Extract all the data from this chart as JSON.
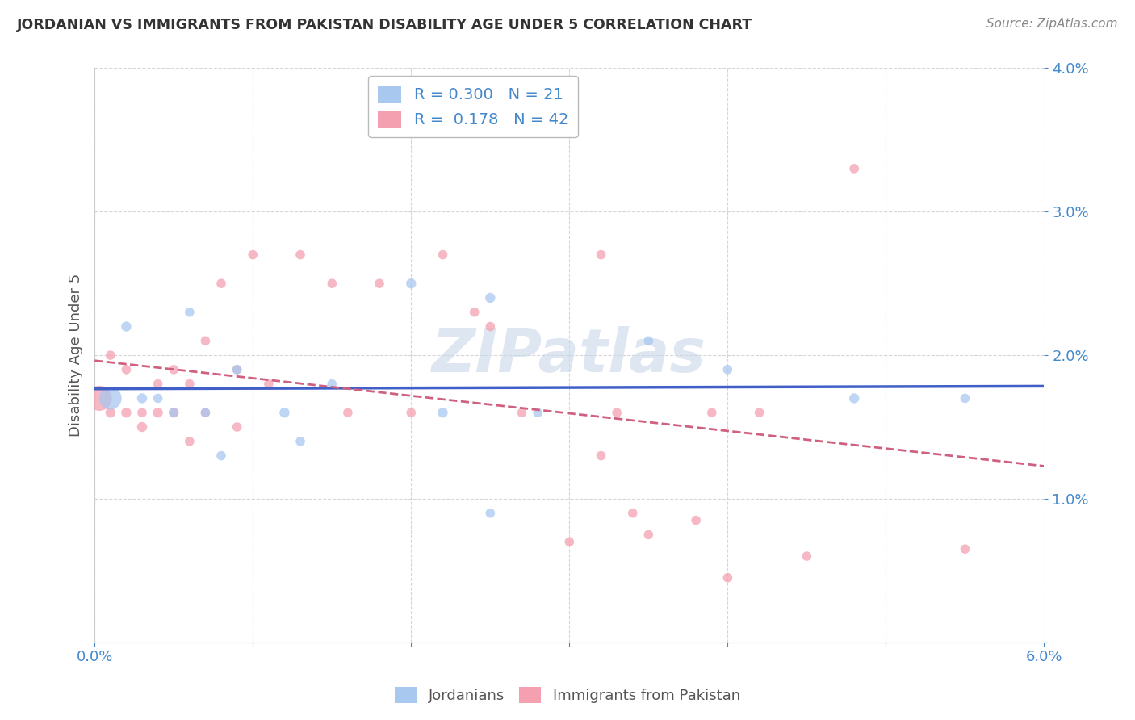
{
  "title": "JORDANIAN VS IMMIGRANTS FROM PAKISTAN DISABILITY AGE UNDER 5 CORRELATION CHART",
  "source": "Source: ZipAtlas.com",
  "ylabel": "Disability Age Under 5",
  "xlim": [
    0.0,
    0.06
  ],
  "ylim": [
    0.0,
    0.04
  ],
  "x_ticks": [
    0.0,
    0.01,
    0.02,
    0.03,
    0.04,
    0.05,
    0.06
  ],
  "y_ticks": [
    0.0,
    0.01,
    0.02,
    0.03,
    0.04
  ],
  "legend_labels": [
    "Jordanians",
    "Immigrants from Pakistan"
  ],
  "R_jordan": 0.3,
  "N_jordan": 21,
  "R_pakistan": 0.178,
  "N_pakistan": 42,
  "color_jordan": "#a8c8f0",
  "color_pakistan": "#f4a0b0",
  "line_color_jordan": "#4060c8",
  "line_color_pakistan": "#d06080",
  "background_color": "#ffffff",
  "grid_color": "#cccccc",
  "watermark": "ZIPatlas",
  "jordan_x": [
    0.001,
    0.002,
    0.003,
    0.004,
    0.005,
    0.006,
    0.007,
    0.008,
    0.009,
    0.012,
    0.013,
    0.015,
    0.02,
    0.022,
    0.025,
    0.025,
    0.028,
    0.035,
    0.04,
    0.048,
    0.055
  ],
  "jordan_y": [
    0.017,
    0.022,
    0.017,
    0.017,
    0.016,
    0.023,
    0.016,
    0.013,
    0.019,
    0.016,
    0.014,
    0.018,
    0.025,
    0.016,
    0.009,
    0.024,
    0.016,
    0.021,
    0.019,
    0.017,
    0.017
  ],
  "jordan_size": [
    400,
    80,
    80,
    70,
    70,
    70,
    70,
    70,
    70,
    80,
    70,
    70,
    80,
    80,
    70,
    80,
    70,
    70,
    70,
    80,
    70
  ],
  "pakistan_x": [
    0.0003,
    0.001,
    0.001,
    0.002,
    0.002,
    0.003,
    0.003,
    0.004,
    0.004,
    0.005,
    0.005,
    0.006,
    0.006,
    0.007,
    0.007,
    0.008,
    0.009,
    0.009,
    0.01,
    0.011,
    0.013,
    0.015,
    0.016,
    0.018,
    0.02,
    0.022,
    0.024,
    0.025,
    0.027,
    0.03,
    0.032,
    0.032,
    0.033,
    0.034,
    0.035,
    0.038,
    0.039,
    0.04,
    0.042,
    0.045,
    0.048,
    0.055
  ],
  "pakistan_y": [
    0.017,
    0.016,
    0.02,
    0.016,
    0.019,
    0.015,
    0.016,
    0.016,
    0.018,
    0.016,
    0.019,
    0.014,
    0.018,
    0.016,
    0.021,
    0.025,
    0.015,
    0.019,
    0.027,
    0.018,
    0.027,
    0.025,
    0.016,
    0.025,
    0.016,
    0.027,
    0.023,
    0.022,
    0.016,
    0.007,
    0.013,
    0.027,
    0.016,
    0.009,
    0.0075,
    0.0085,
    0.016,
    0.0045,
    0.016,
    0.006,
    0.033,
    0.0065
  ],
  "pakistan_size": [
    500,
    80,
    70,
    80,
    70,
    80,
    70,
    80,
    70,
    80,
    70,
    70,
    70,
    70,
    70,
    70,
    70,
    70,
    70,
    70,
    70,
    70,
    70,
    70,
    70,
    70,
    70,
    70,
    70,
    70,
    70,
    70,
    70,
    70,
    70,
    70,
    70,
    70,
    70,
    70,
    70,
    70
  ]
}
